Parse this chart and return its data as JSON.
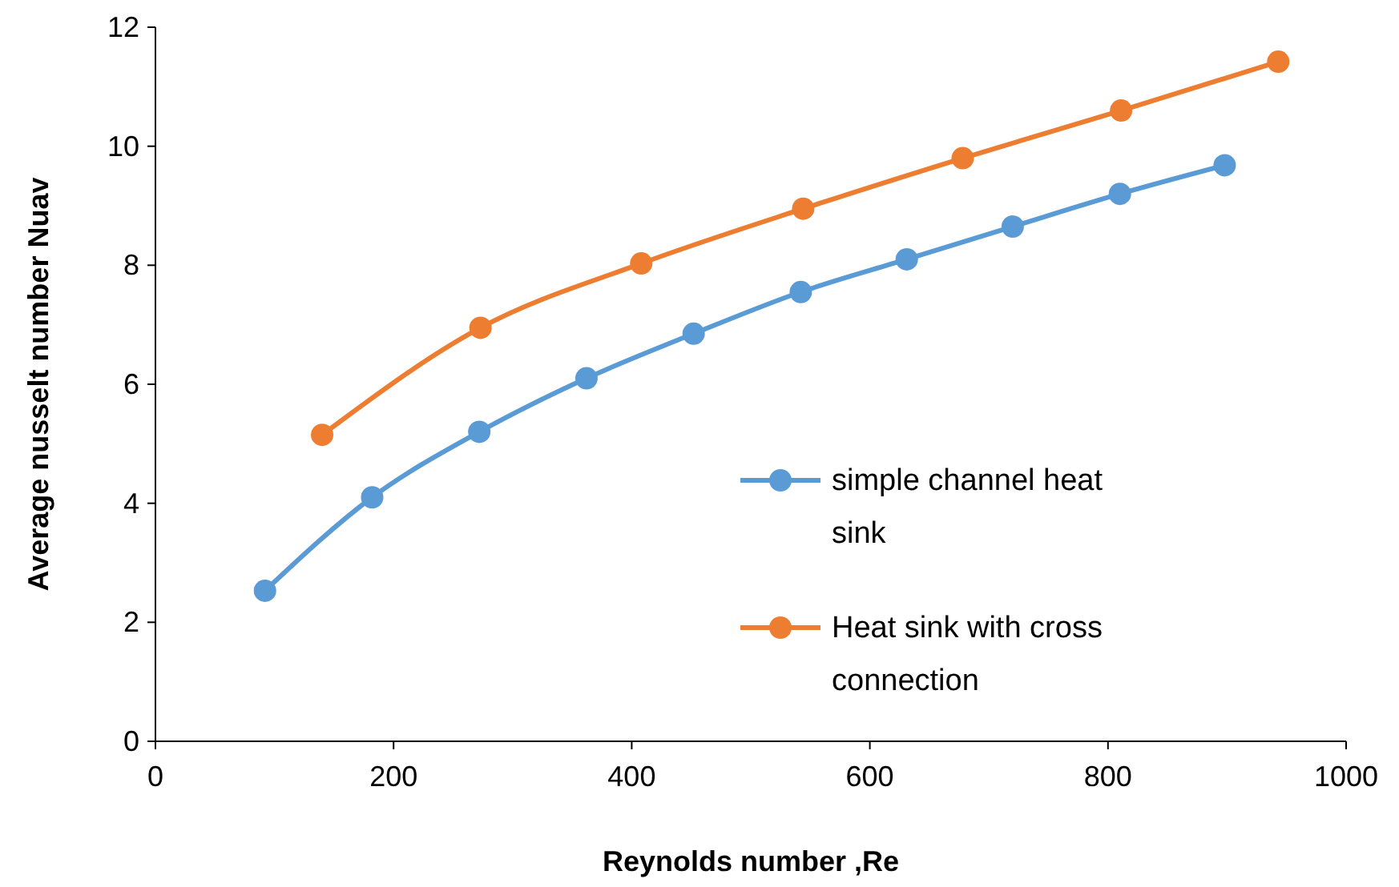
{
  "chart_data": {
    "type": "line",
    "xlabel": "Reynolds number ,Re",
    "ylabel": "Average nusselt number Nuav",
    "xlim": [
      0,
      1000
    ],
    "xticks": [
      0,
      200,
      400,
      600,
      800,
      1000
    ],
    "ylim": [
      0,
      12
    ],
    "yticks": [
      0,
      2,
      4,
      6,
      8,
      10,
      12
    ],
    "grid": false,
    "legend": "right",
    "marker": "circle",
    "line_style": "solid",
    "series": [
      {
        "name": "simple channel heat sink",
        "color": "#5b9bd5",
        "x": [
          92,
          182,
          272,
          362,
          452,
          542,
          631,
          720,
          810,
          898
        ],
        "values": [
          2.53,
          4.1,
          5.2,
          6.1,
          6.85,
          7.55,
          8.1,
          8.65,
          9.2,
          9.68
        ]
      },
      {
        "name": "Heat sink with cross connection",
        "color": "#ed7d31",
        "x": [
          140,
          273,
          408,
          544,
          678,
          811,
          943
        ],
        "values": [
          5.15,
          6.95,
          8.03,
          8.95,
          9.8,
          10.6,
          11.42
        ]
      }
    ]
  }
}
